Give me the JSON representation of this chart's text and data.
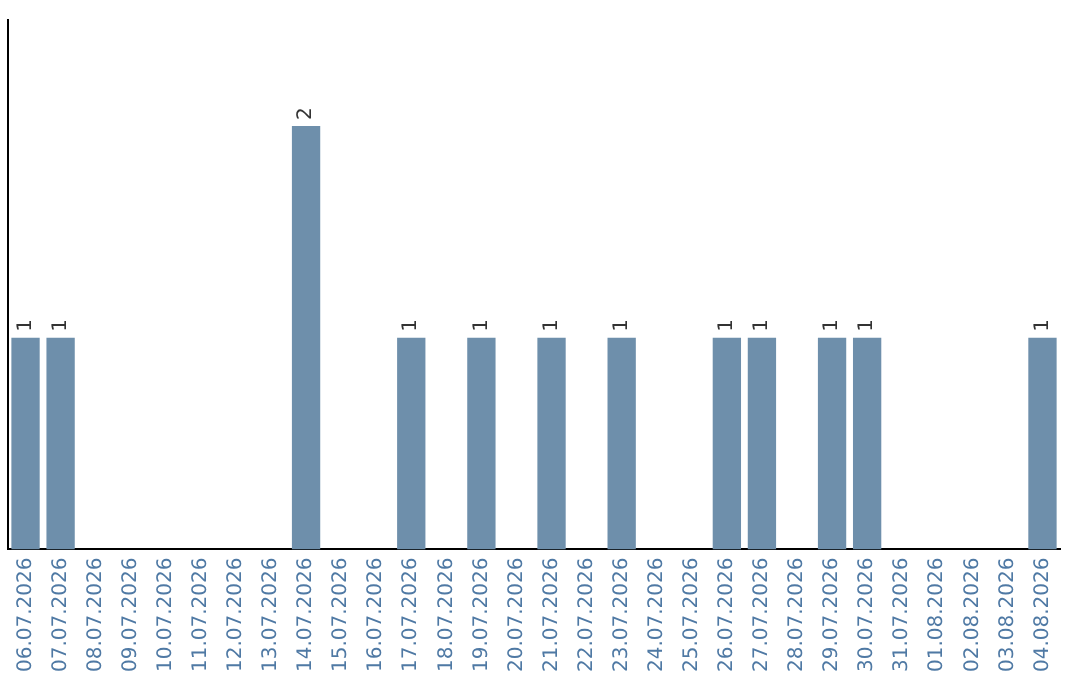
{
  "chart_data": {
    "type": "bar",
    "categories": [
      "06.07.2026",
      "07.07.2026",
      "08.07.2026",
      "09.07.2026",
      "10.07.2026",
      "11.07.2026",
      "12.07.2026",
      "13.07.2026",
      "14.07.2026",
      "15.07.2026",
      "16.07.2026",
      "17.07.2026",
      "18.07.2026",
      "19.07.2026",
      "20.07.2026",
      "21.07.2026",
      "22.07.2026",
      "23.07.2026",
      "24.07.2026",
      "25.07.2026",
      "26.07.2026",
      "27.07.2026",
      "28.07.2026",
      "29.07.2026",
      "30.07.2026",
      "31.07.2026",
      "01.08.2026",
      "02.08.2026",
      "03.08.2026",
      "04.08.2026"
    ],
    "values": [
      1,
      1,
      0,
      0,
      0,
      0,
      0,
      0,
      2,
      0,
      0,
      1,
      0,
      1,
      0,
      1,
      0,
      1,
      0,
      0,
      1,
      1,
      0,
      1,
      1,
      0,
      0,
      0,
      0,
      1
    ],
    "value_labels": [
      "1",
      "1",
      null,
      null,
      null,
      null,
      null,
      null,
      "2",
      null,
      null,
      "1",
      null,
      "1",
      null,
      "1",
      null,
      "1",
      null,
      null,
      "1",
      "1",
      null,
      "1",
      "1",
      null,
      null,
      null,
      null,
      "1"
    ],
    "color": "#6e8fab",
    "tick_labels": "x",
    "grid": false,
    "legend": false
  }
}
